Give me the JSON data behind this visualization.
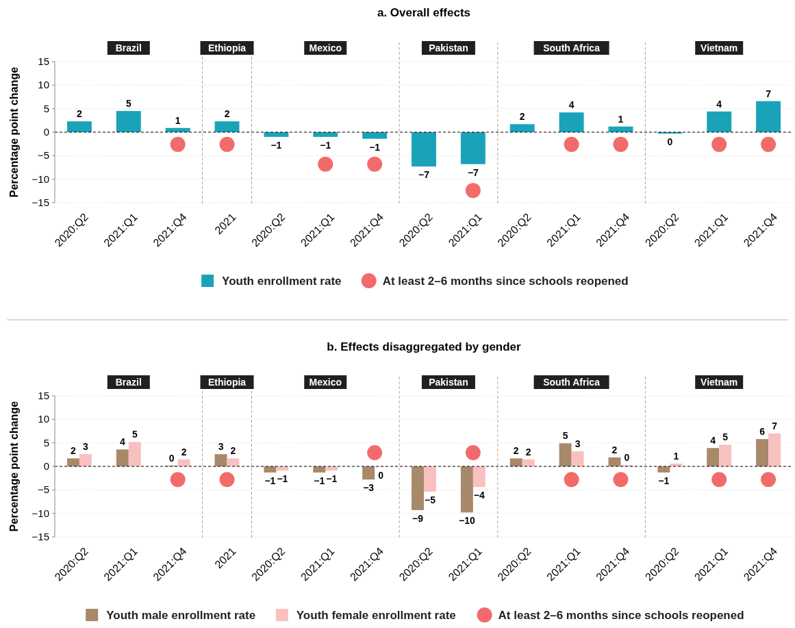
{
  "chart_data": [
    {
      "type": "bar",
      "title": "a. Overall effects",
      "ylabel": "Percentage point change",
      "categories": [
        "2020:Q2",
        "2021:Q1",
        "2021:Q4",
        "2021",
        "2020:Q2",
        "2021:Q1",
        "2021:Q4",
        "2020:Q2",
        "2021:Q1",
        "2020:Q2",
        "2021:Q1",
        "2021:Q4",
        "2020:Q2",
        "2021:Q1",
        "2021:Q4"
      ],
      "annotations": [
        "Brazil",
        "Ethiopia",
        "Mexico",
        "Pakistan",
        "South Africa",
        "Vietnam"
      ],
      "series": [
        {
          "name": "Youth enrollment rate",
          "type": "bar",
          "color": "#1aa3b8",
          "values": [
            2.3,
            4.5,
            0.9,
            2.3,
            -1.0,
            -1.0,
            -1.4,
            -7.3,
            -6.8,
            1.7,
            4.2,
            1.2,
            -0.3,
            4.4,
            6.6
          ],
          "value_labels": [
            "2",
            "5",
            "1",
            "2",
            "−1",
            "−1",
            "−1",
            "−7",
            "−7",
            "2",
            "4",
            "1",
            "0",
            "4",
            "7"
          ]
        },
        {
          "name": "At least 2–6 months since schools reopened",
          "type": "scatter",
          "color": "#f26b6b",
          "marker": "circle",
          "values": [
            null,
            null,
            -2.6,
            -2.6,
            null,
            -6.8,
            -6.8,
            null,
            -12.4,
            null,
            -2.6,
            -2.6,
            null,
            -2.6,
            -2.6
          ]
        }
      ],
      "ylim": [
        -15,
        15
      ],
      "yticks": [
        -15,
        -10,
        -5,
        0,
        5,
        10,
        15
      ],
      "grid": "y",
      "legend": "bottom",
      "ref_lines": [
        {
          "axis": "y",
          "value": 0,
          "color": "#000000",
          "line_style": "dashed"
        }
      ]
    },
    {
      "type": "bar",
      "title": "b. Effects disaggregated by gender",
      "ylabel": "Percentage point change",
      "categories": [
        "2020:Q2",
        "2021:Q1",
        "2021:Q4",
        "2021",
        "2020:Q2",
        "2021:Q1",
        "2021:Q4",
        "2020:Q2",
        "2021:Q1",
        "2020:Q2",
        "2021:Q1",
        "2021:Q4",
        "2020:Q2",
        "2021:Q1",
        "2021:Q4"
      ],
      "annotations": [
        "Brazil",
        "Ethiopia",
        "Mexico",
        "Pakistan",
        "South Africa",
        "Vietnam"
      ],
      "series": [
        {
          "name": "Youth male enrollment rate",
          "type": "bar",
          "color": "#a8896a",
          "values": [
            1.7,
            3.6,
            0.15,
            2.6,
            -1.3,
            -1.3,
            -2.8,
            -9.3,
            -9.8,
            1.7,
            4.9,
            1.9,
            -1.3,
            3.9,
            5.8
          ],
          "value_labels": [
            "2",
            "4",
            "0",
            "3",
            "−1",
            "−1",
            "−3",
            "−9",
            "−10",
            "2",
            "5",
            "2",
            "−1",
            "4",
            "6"
          ]
        },
        {
          "name": "Youth female enrollment rate",
          "type": "bar",
          "color": "#f9c0c0",
          "values": [
            2.6,
            5.2,
            1.5,
            1.7,
            -0.9,
            -0.9,
            -0.1,
            -5.4,
            -4.4,
            1.5,
            3.2,
            0.3,
            0.6,
            4.6,
            7.0
          ],
          "value_labels": [
            "3",
            "5",
            "2",
            "2",
            "−1",
            "−1",
            "0",
            "−5",
            "−4",
            "2",
            "3",
            "0",
            "1",
            "5",
            "7"
          ]
        },
        {
          "name": "At least 2–6 months since schools reopened",
          "type": "scatter",
          "color": "#f26b6b",
          "marker": "circle",
          "values": [
            null,
            null,
            -2.8,
            -2.8,
            null,
            null,
            2.9,
            null,
            2.9,
            null,
            -2.8,
            -2.8,
            null,
            -2.8,
            -2.8
          ]
        }
      ],
      "ylim": [
        -15,
        15
      ],
      "yticks": [
        -15,
        -10,
        -5,
        0,
        5,
        10,
        15
      ],
      "grid": "y",
      "legend": "bottom",
      "ref_lines": [
        {
          "axis": "y",
          "value": 0,
          "color": "#000000",
          "line_style": "dashed"
        }
      ]
    }
  ]
}
